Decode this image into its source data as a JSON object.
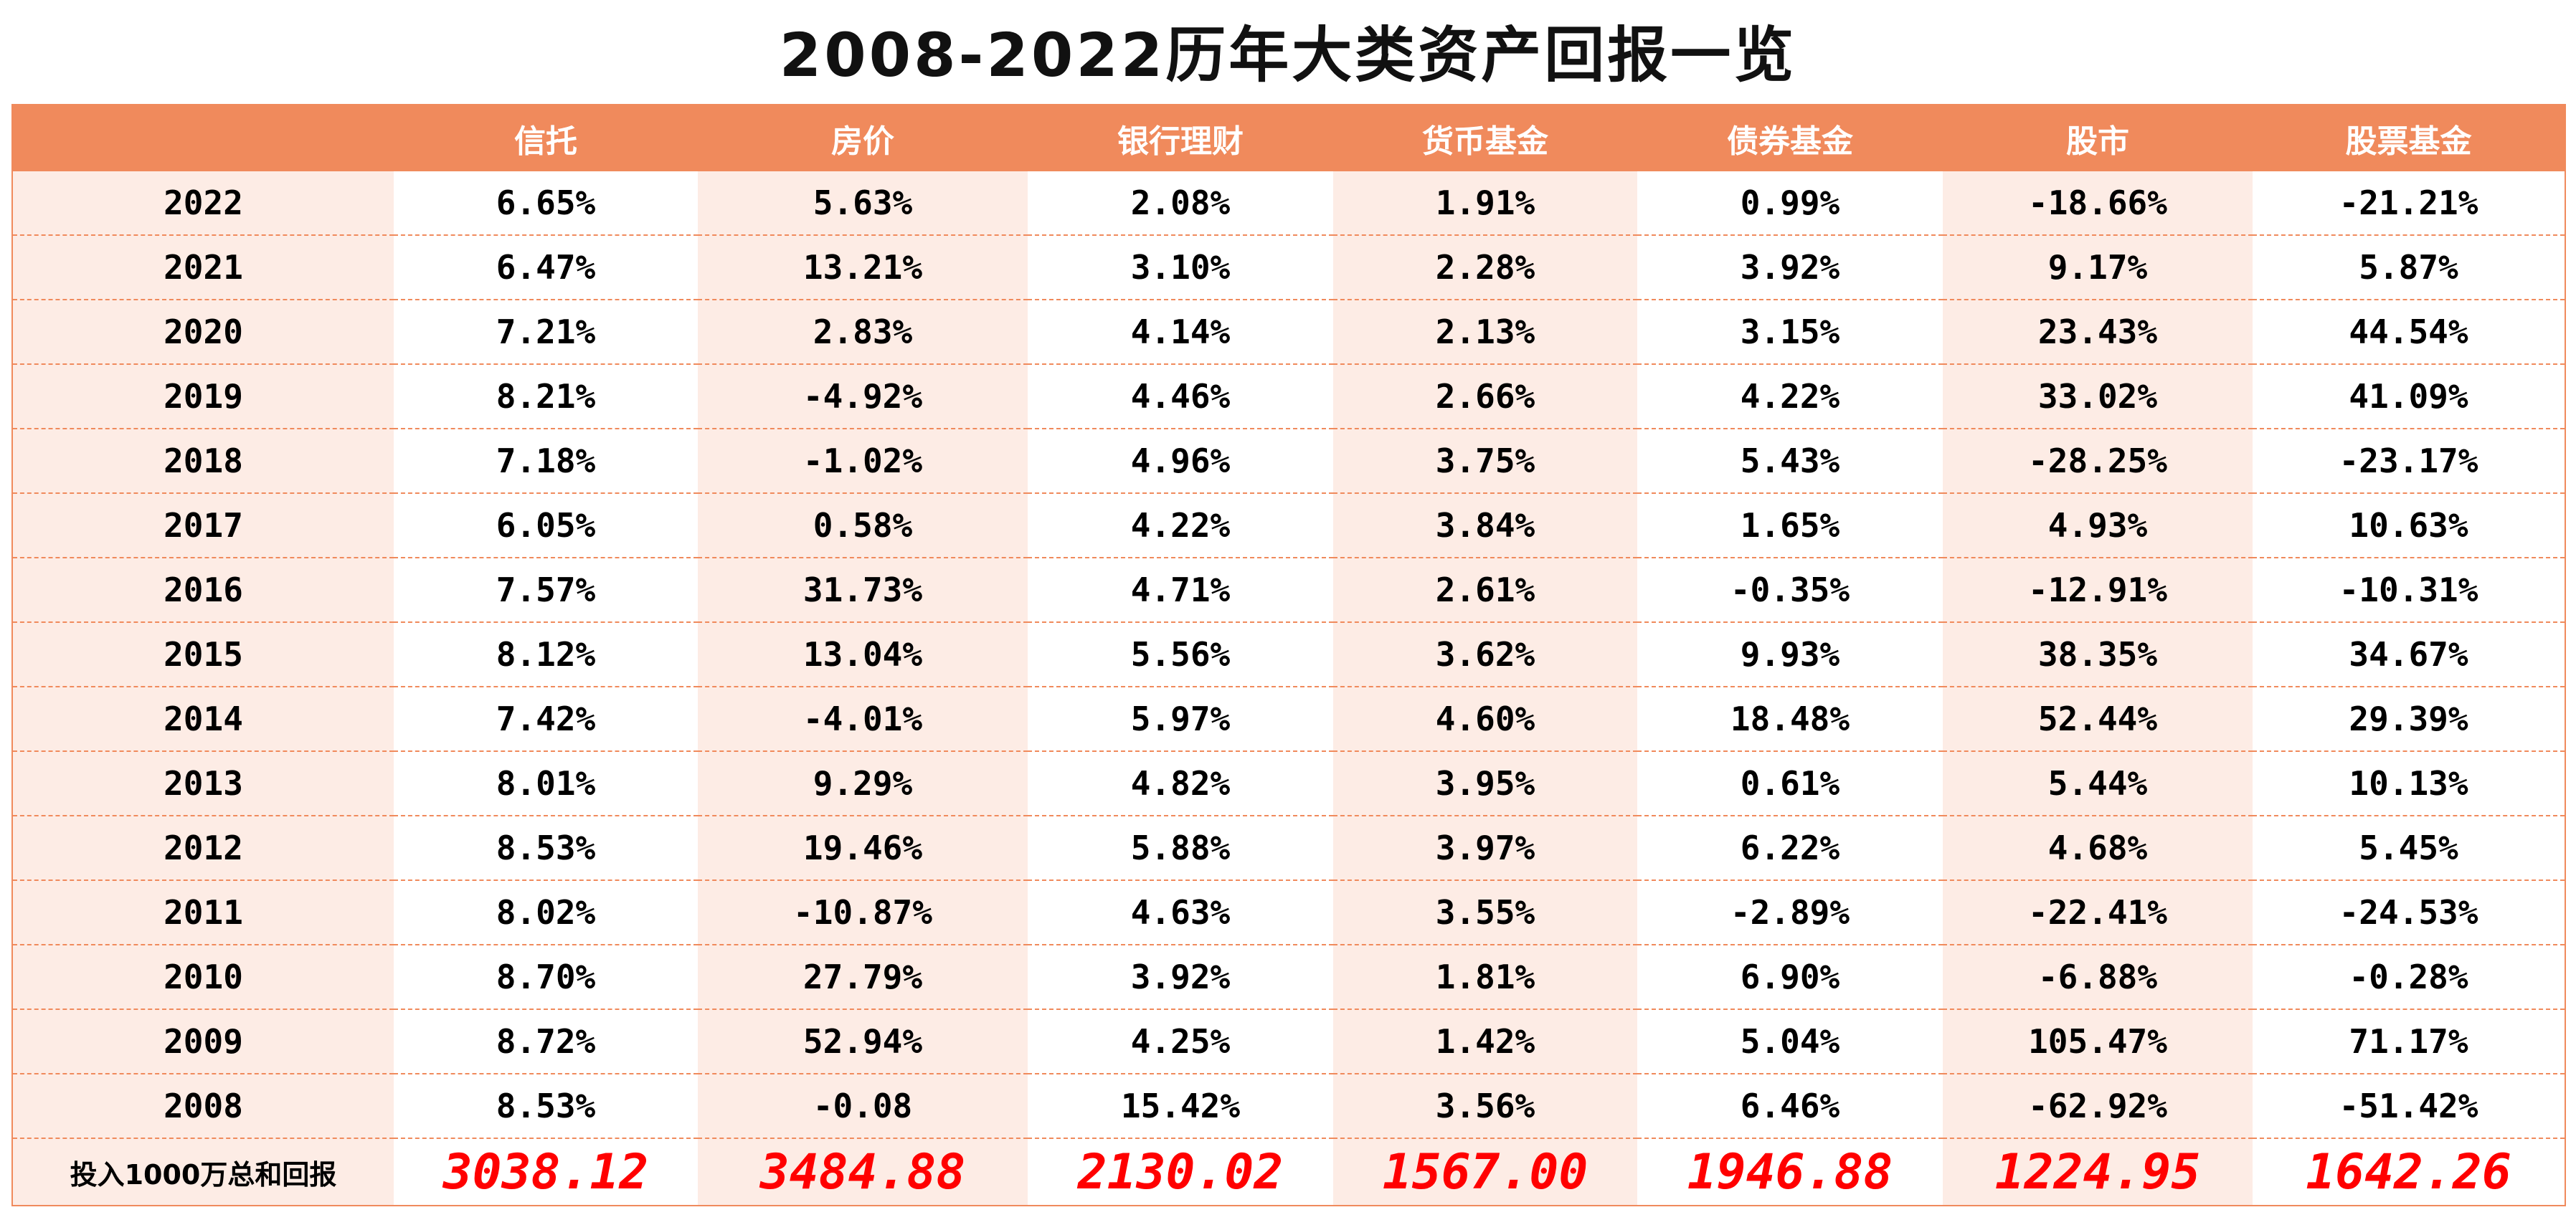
{
  "title": "2008-2022历年大类资产回报一览",
  "colors": {
    "header_bg": "#f08a5c",
    "tint": "#fdece5",
    "total_text": "#ff0000"
  },
  "chart_data": {
    "type": "table",
    "title": "2008-2022历年大类资产回报一览",
    "columns": [
      "",
      "信托",
      "房价",
      "银行理财",
      "货币基金",
      "债券基金",
      "股市",
      "股票基金"
    ],
    "rows": [
      {
        "year": "2022",
        "values": [
          "6.65%",
          "5.63%",
          "2.08%",
          "1.91%",
          "0.99%",
          "-18.66%",
          "-21.21%"
        ]
      },
      {
        "year": "2021",
        "values": [
          "6.47%",
          "13.21%",
          "3.10%",
          "2.28%",
          "3.92%",
          "9.17%",
          "5.87%"
        ]
      },
      {
        "year": "2020",
        "values": [
          "7.21%",
          "2.83%",
          "4.14%",
          "2.13%",
          "3.15%",
          "23.43%",
          "44.54%"
        ]
      },
      {
        "year": "2019",
        "values": [
          "8.21%",
          "-4.92%",
          "4.46%",
          "2.66%",
          "4.22%",
          "33.02%",
          "41.09%"
        ]
      },
      {
        "year": "2018",
        "values": [
          "7.18%",
          "-1.02%",
          "4.96%",
          "3.75%",
          "5.43%",
          "-28.25%",
          "-23.17%"
        ]
      },
      {
        "year": "2017",
        "values": [
          "6.05%",
          "0.58%",
          "4.22%",
          "3.84%",
          "1.65%",
          "4.93%",
          "10.63%"
        ]
      },
      {
        "year": "2016",
        "values": [
          "7.57%",
          "31.73%",
          "4.71%",
          "2.61%",
          "-0.35%",
          "-12.91%",
          "-10.31%"
        ]
      },
      {
        "year": "2015",
        "values": [
          "8.12%",
          "13.04%",
          "5.56%",
          "3.62%",
          "9.93%",
          "38.35%",
          "34.67%"
        ]
      },
      {
        "year": "2014",
        "values": [
          "7.42%",
          "-4.01%",
          "5.97%",
          "4.60%",
          "18.48%",
          "52.44%",
          "29.39%"
        ]
      },
      {
        "year": "2013",
        "values": [
          "8.01%",
          "9.29%",
          "4.82%",
          "3.95%",
          "0.61%",
          "5.44%",
          "10.13%"
        ]
      },
      {
        "year": "2012",
        "values": [
          "8.53%",
          "19.46%",
          "5.88%",
          "3.97%",
          "6.22%",
          "4.68%",
          "5.45%"
        ]
      },
      {
        "year": "2011",
        "values": [
          "8.02%",
          "-10.87%",
          "4.63%",
          "3.55%",
          "-2.89%",
          "-22.41%",
          "-24.53%"
        ]
      },
      {
        "year": "2010",
        "values": [
          "8.70%",
          "27.79%",
          "3.92%",
          "1.81%",
          "6.90%",
          "-6.88%",
          "-0.28%"
        ]
      },
      {
        "year": "2009",
        "values": [
          "8.72%",
          "52.94%",
          "4.25%",
          "1.42%",
          "5.04%",
          "105.47%",
          "71.17%"
        ]
      },
      {
        "year": "2008",
        "values": [
          "8.53%",
          "-0.08",
          "15.42%",
          "3.56%",
          "6.46%",
          "-62.92%",
          "-51.42%"
        ]
      }
    ],
    "total": {
      "label": "投入1000万总和回报",
      "values": [
        "3038.12",
        "3484.88",
        "2130.02",
        "1567.00",
        "1946.88",
        "1224.95",
        "1642.26"
      ]
    }
  }
}
